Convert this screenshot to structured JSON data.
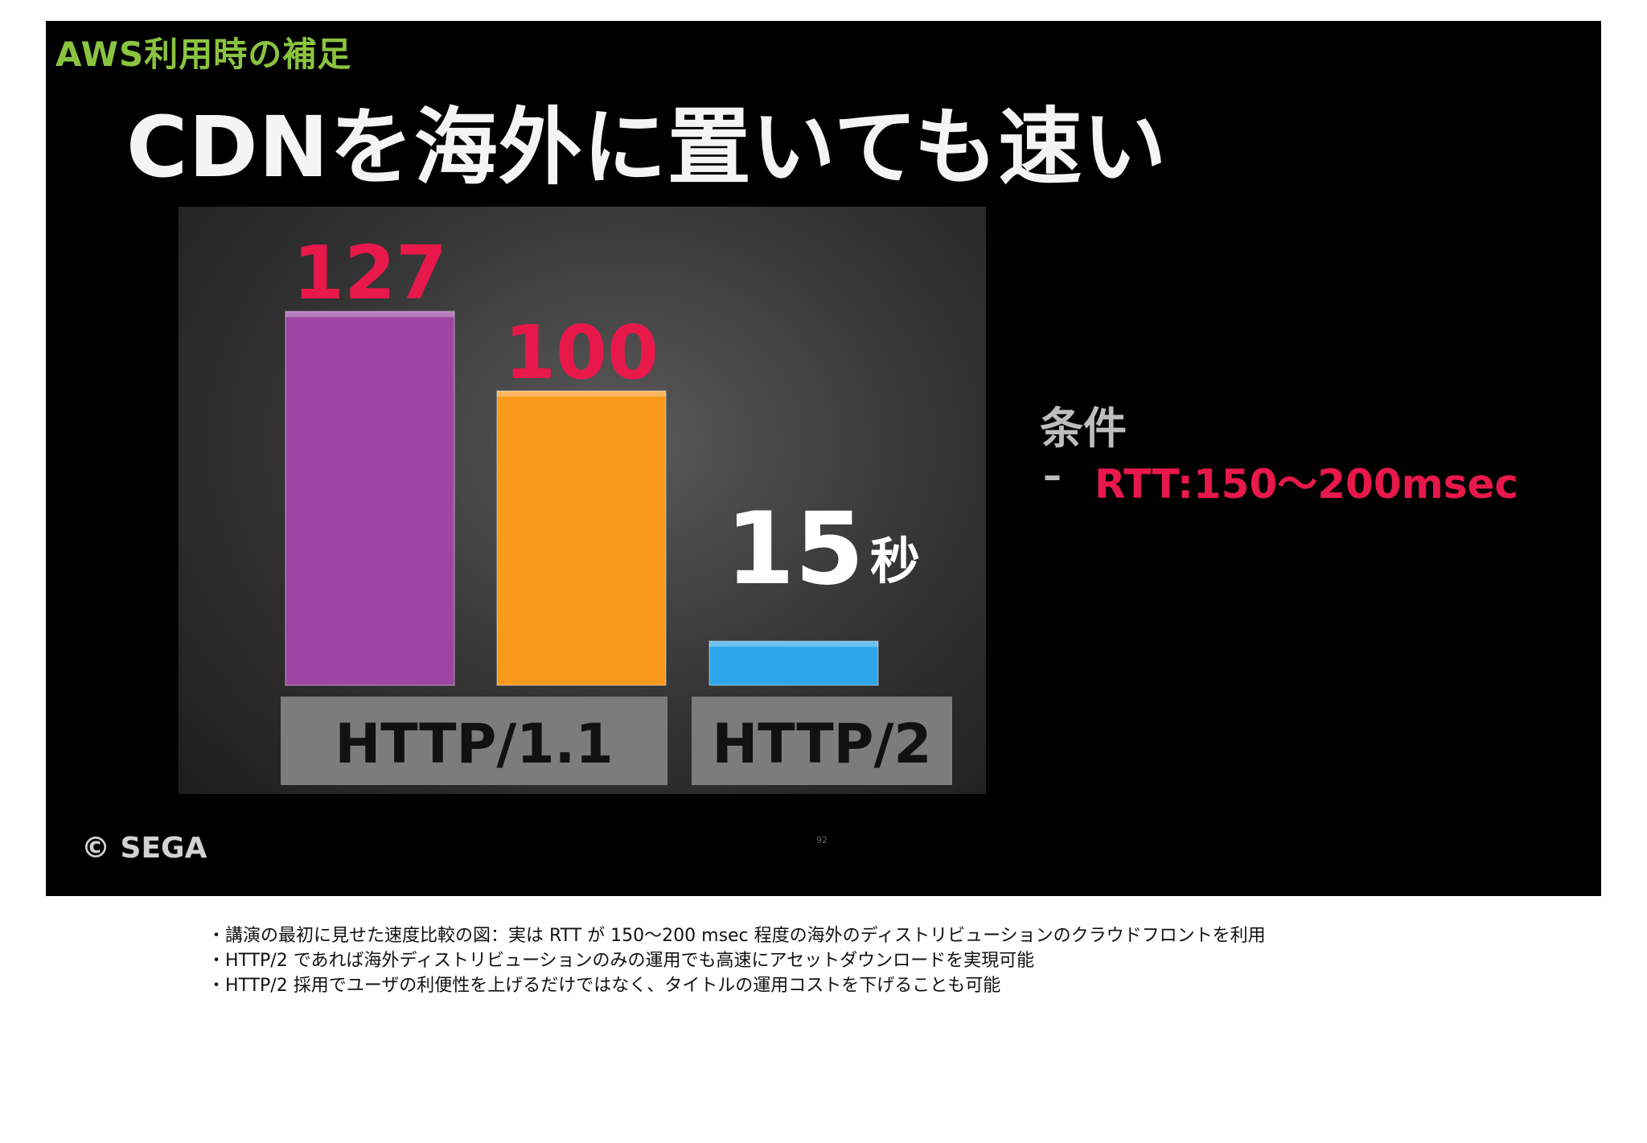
{
  "slide": {
    "subtitle": "AWS利用時の補足",
    "title": "CDNを海外に置いても速い",
    "copyright": "© SEGA",
    "page_number": "92",
    "conditions": {
      "label": "条件",
      "dash": "–",
      "value": "RTT:150〜200msec"
    }
  },
  "chart_data": {
    "type": "bar",
    "unit": "秒",
    "bars": [
      {
        "value": 127,
        "label": "127",
        "color": "#9b46a3",
        "group": "HTTP/1.1"
      },
      {
        "value": 100,
        "label": "100",
        "color": "#f99a1c",
        "group": "HTTP/1.1"
      },
      {
        "value": 15,
        "label": "15",
        "color": "#2fa6ea",
        "group": "HTTP/2"
      }
    ],
    "groups": [
      "HTTP/1.1",
      "HTTP/2"
    ],
    "colors": {
      "value_label_red": "#e8194a",
      "value_label_white": "#ffffff",
      "group_box": "#7c7c7c",
      "group_text": "#111111"
    }
  },
  "notes": [
    "・講演の最初に見せた速度比較の図：実は RTT が 150〜200 msec 程度の海外のディストリビューションのクラウドフロントを利用",
    "・HTTP/2 であれば海外ディストリビューションのみの運用でも高速にアセットダウンロードを実現可能",
    "・HTTP/2 採用でユーザの利便性を上げるだけではなく、タイトルの運用コストを下げることも可能"
  ]
}
